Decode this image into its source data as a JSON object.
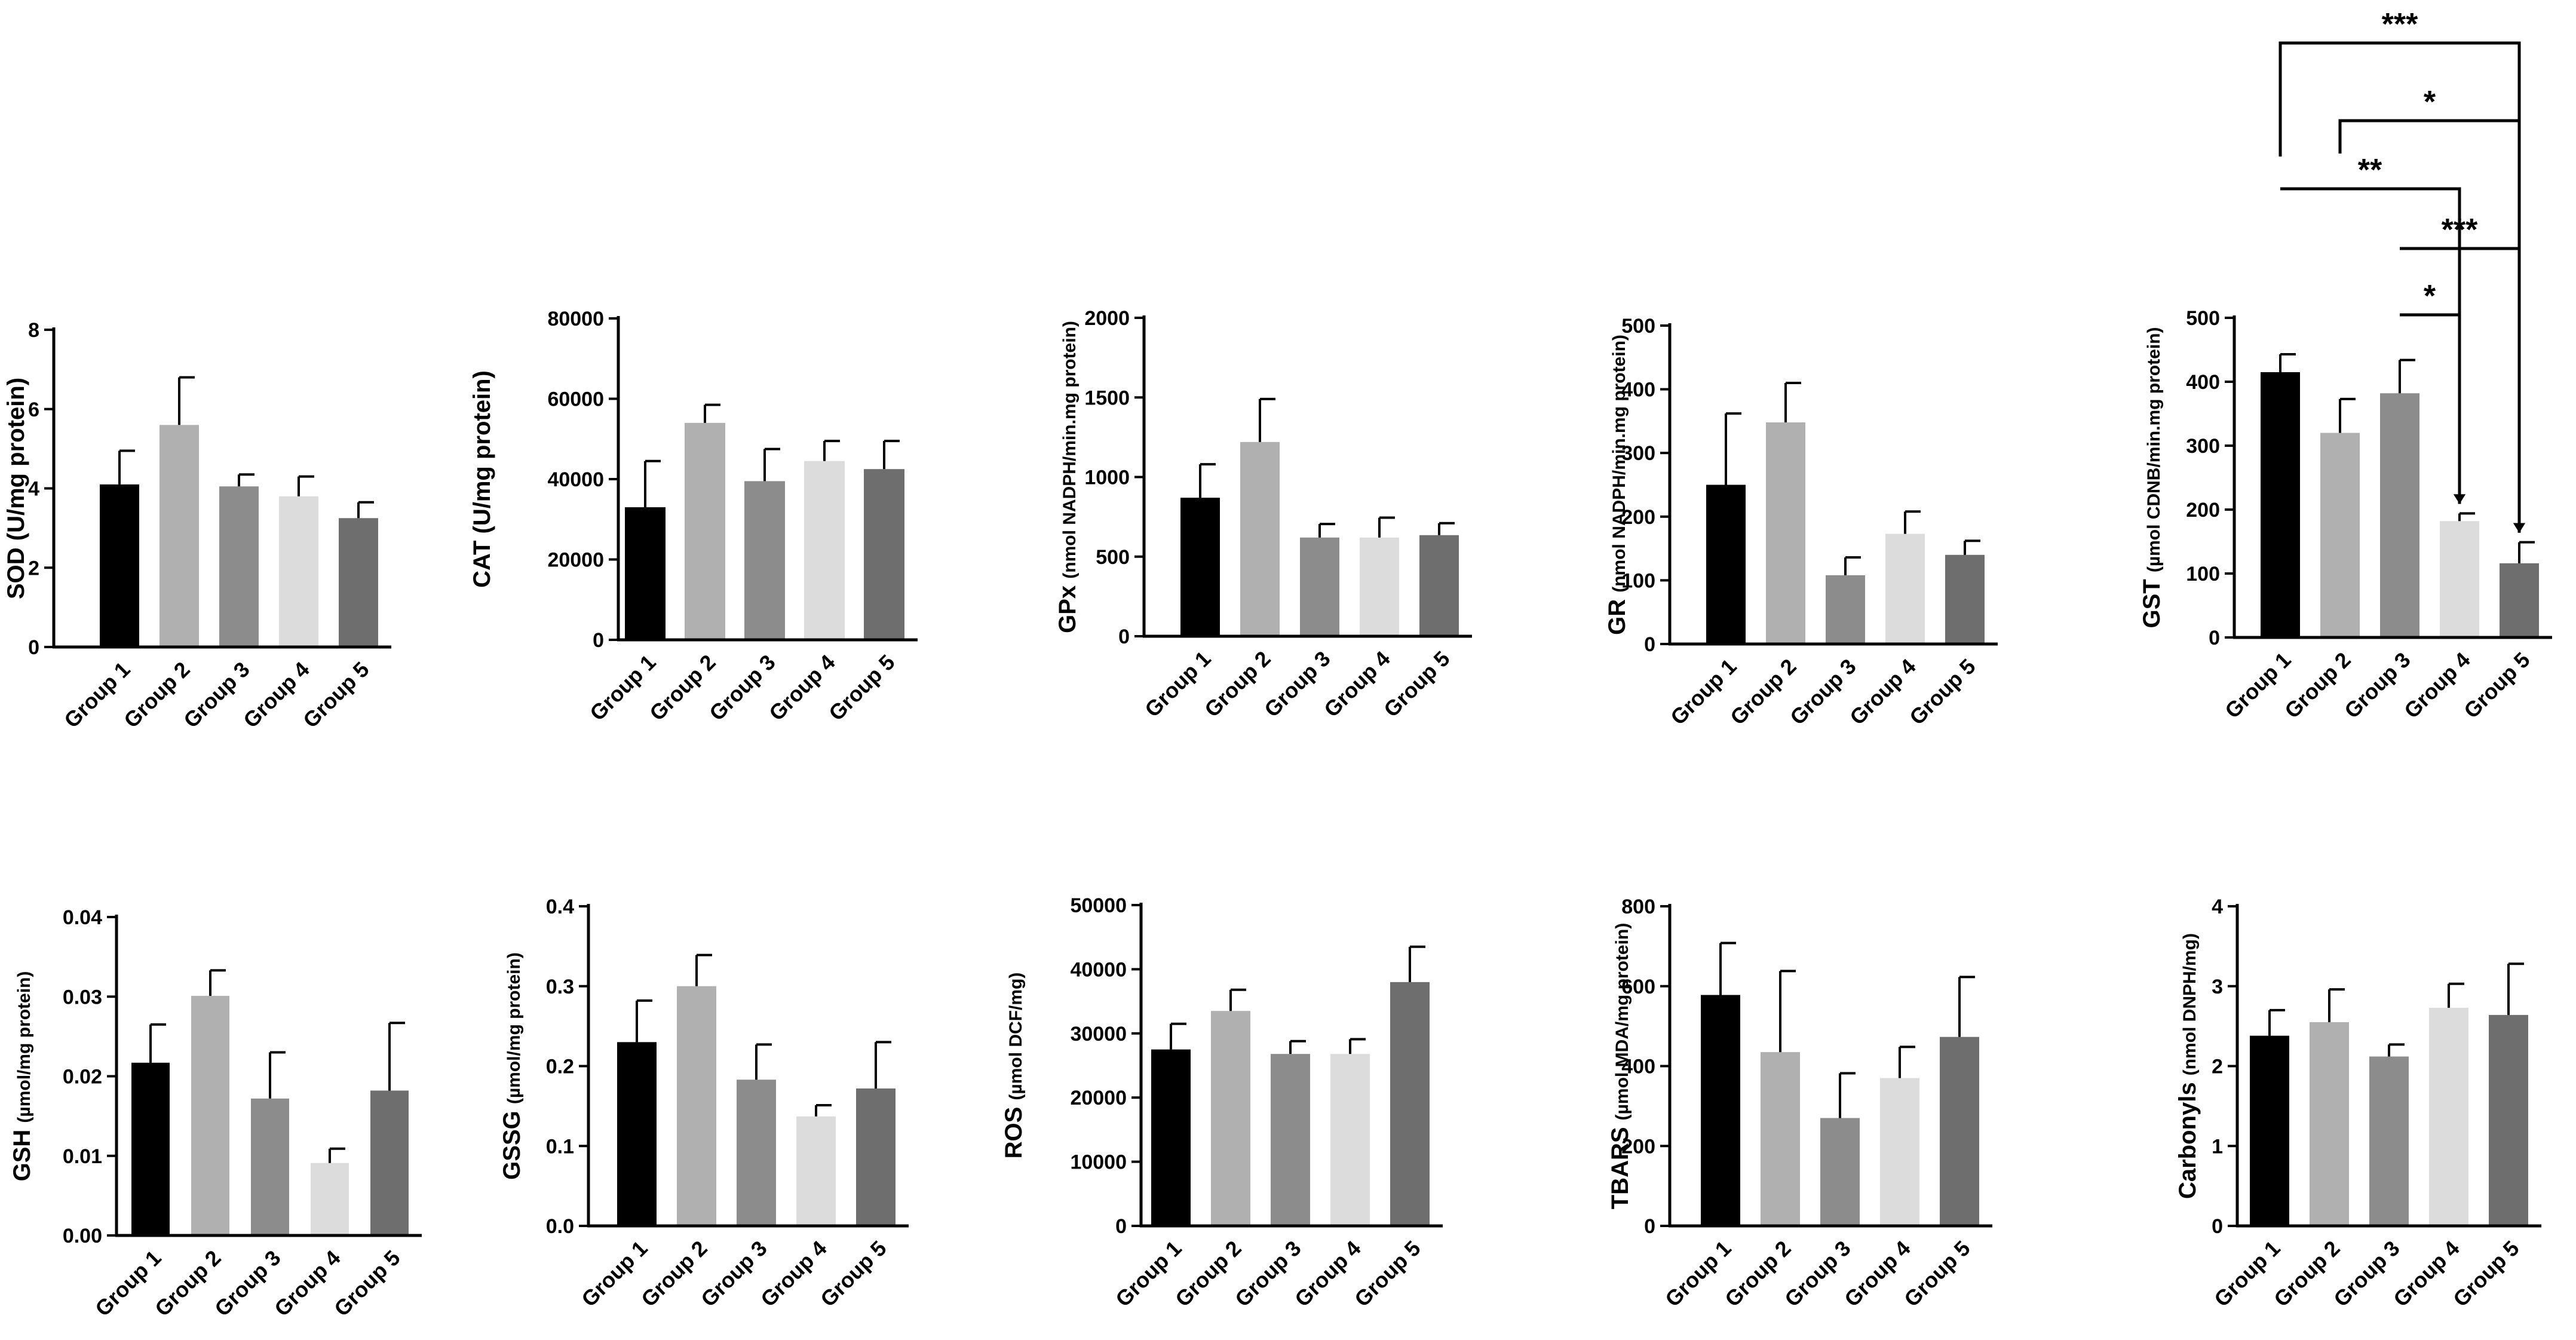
{
  "group_colors": [
    "#000000",
    "#b0b0b0",
    "#8c8c8c",
    "#dcdcdc",
    "#6e6e6e"
  ],
  "chart_data": [
    {
      "type": "bar",
      "title": "",
      "ylabel_main": "SOD",
      "ylabel_unit": "(U/mg protein)",
      "unit_bold": true,
      "categories": [
        "Group 1",
        "Group 2",
        "Group 3",
        "Group 4",
        "Group 5"
      ],
      "values": [
        4.1,
        5.6,
        4.05,
        3.8,
        3.25
      ],
      "errors": [
        0.85,
        1.2,
        0.3,
        0.5,
        0.4
      ],
      "ylim": [
        0,
        8
      ],
      "yticks": [
        0,
        2,
        4,
        6,
        8
      ],
      "tick_labels": [
        "0",
        "2",
        "4",
        "6",
        "8"
      ]
    },
    {
      "type": "bar",
      "title": "",
      "ylabel_main": "CAT",
      "ylabel_unit": "(U/mg protein)",
      "unit_bold": true,
      "categories": [
        "Group 1",
        "Group 2",
        "Group 3",
        "Group 4",
        "Group 5"
      ],
      "values": [
        33000,
        54000,
        39500,
        44500,
        42500
      ],
      "errors": [
        11500,
        4500,
        8000,
        5000,
        7000
      ],
      "ylim": [
        0,
        80000
      ],
      "yticks": [
        0,
        20000,
        40000,
        60000,
        80000
      ],
      "tick_labels": [
        "0",
        "20000",
        "40000",
        "60000",
        "80000"
      ]
    },
    {
      "type": "bar",
      "title": "",
      "ylabel_main": "GPx",
      "ylabel_unit": "(nmol NADPH/min.mg protein)",
      "unit_bold": false,
      "categories": [
        "Group 1",
        "Group 2",
        "Group 3",
        "Group 4",
        "Group 5"
      ],
      "values": [
        870,
        1220,
        620,
        620,
        635
      ],
      "errors": [
        210,
        270,
        85,
        125,
        75
      ],
      "ylim": [
        0,
        2000
      ],
      "yticks": [
        0,
        500,
        1000,
        1500,
        2000
      ],
      "tick_labels": [
        "0",
        "500",
        "1000",
        "1500",
        "2000"
      ]
    },
    {
      "type": "bar",
      "title": "",
      "ylabel_main": "GR",
      "ylabel_unit": "(nmol NADPH/min.mg protein)",
      "unit_bold": false,
      "categories": [
        "Group 1",
        "Group 2",
        "Group 3",
        "Group 4",
        "Group 5"
      ],
      "values": [
        250,
        348,
        108,
        173,
        140
      ],
      "errors": [
        112,
        62,
        28,
        35,
        22
      ],
      "ylim": [
        0,
        500
      ],
      "yticks": [
        0,
        100,
        200,
        300,
        400,
        500
      ],
      "tick_labels": [
        "0",
        "100",
        "200",
        "300",
        "400",
        "500"
      ]
    },
    {
      "type": "bar",
      "title": "",
      "ylabel_main": "GST",
      "ylabel_unit": "(µmol CDNB/min.mg protein)",
      "unit_bold": false,
      "categories": [
        "Group 1",
        "Group 2",
        "Group 3",
        "Group 4",
        "Group 5"
      ],
      "values": [
        415,
        320,
        382,
        182,
        116
      ],
      "errors": [
        28,
        53,
        52,
        12,
        33
      ],
      "ylim": [
        0,
        500
      ],
      "yticks": [
        0,
        100,
        200,
        300,
        400,
        500
      ],
      "tick_labels": [
        "0",
        "100",
        "200",
        "300",
        "400",
        "500"
      ],
      "significance": [
        {
          "from": "Group 1",
          "to": "Group 5",
          "label": "***"
        },
        {
          "from": "Group 2",
          "to": "Group 5",
          "label": "*"
        },
        {
          "from": "Group 1",
          "to": "Group 4",
          "label": "**"
        },
        {
          "from": "Group 3",
          "to": "Group 5",
          "label": "***"
        },
        {
          "from": "Group 3",
          "to": "Group 4",
          "label": "*"
        }
      ]
    },
    {
      "type": "bar",
      "title": "",
      "ylabel_main": "GSH",
      "ylabel_unit": "(µmol/mg protein)",
      "unit_bold": false,
      "categories": [
        "Group 1",
        "Group 2",
        "Group 3",
        "Group 4",
        "Group 5"
      ],
      "values": [
        0.0217,
        0.0301,
        0.0172,
        0.0091,
        0.0182
      ],
      "errors": [
        0.0048,
        0.0032,
        0.0058,
        0.0018,
        0.0085
      ],
      "ylim": [
        0,
        0.04
      ],
      "yticks": [
        0,
        0.01,
        0.02,
        0.03,
        0.04
      ],
      "tick_labels": [
        "0.00",
        "0.01",
        "0.02",
        "0.03",
        "0.04"
      ]
    },
    {
      "type": "bar",
      "title": "",
      "ylabel_main": "GSSG",
      "ylabel_unit": "(µmol/mg protein)",
      "unit_bold": false,
      "categories": [
        "Group 1",
        "Group 2",
        "Group 3",
        "Group 4",
        "Group 5"
      ],
      "values": [
        0.23,
        0.3,
        0.183,
        0.137,
        0.172
      ],
      "errors": [
        0.052,
        0.039,
        0.044,
        0.014,
        0.058
      ],
      "ylim": [
        0,
        0.4
      ],
      "yticks": [
        0,
        0.1,
        0.2,
        0.3,
        0.4
      ],
      "tick_labels": [
        "0.0",
        "0.1",
        "0.2",
        "0.3",
        "0.4"
      ]
    },
    {
      "type": "bar",
      "title": "",
      "ylabel_main": "ROS",
      "ylabel_unit": "(µmol DCF/mg)",
      "unit_bold": false,
      "categories": [
        "Group 1",
        "Group 2",
        "Group 3",
        "Group 4",
        "Group 5"
      ],
      "values": [
        27500,
        33500,
        26800,
        26800,
        38000
      ],
      "errors": [
        4000,
        3300,
        2000,
        2300,
        5500
      ],
      "ylim": [
        0,
        50000
      ],
      "yticks": [
        0,
        10000,
        20000,
        30000,
        40000,
        50000
      ],
      "tick_labels": [
        "0",
        "10000",
        "20000",
        "30000",
        "40000",
        "50000"
      ]
    },
    {
      "type": "bar",
      "title": "",
      "ylabel_main": "TBARS",
      "ylabel_unit": "(µmol MDA/mg protein)",
      "unit_bold": false,
      "categories": [
        "Group 1",
        "Group 2",
        "Group 3",
        "Group 4",
        "Group 5"
      ],
      "values": [
        578,
        435,
        270,
        370,
        473
      ],
      "errors": [
        130,
        203,
        112,
        78,
        150
      ],
      "ylim": [
        0,
        800
      ],
      "yticks": [
        0,
        200,
        400,
        600,
        800
      ],
      "tick_labels": [
        "0",
        "200",
        "400",
        "600",
        "800"
      ]
    },
    {
      "type": "bar",
      "title": "",
      "ylabel_main": "Carbonyls",
      "ylabel_unit": "(nmol DNPH/mg)",
      "unit_bold": false,
      "categories": [
        "Group 1",
        "Group 2",
        "Group 3",
        "Group 4",
        "Group 5"
      ],
      "values": [
        2.38,
        2.55,
        2.12,
        2.73,
        2.64
      ],
      "errors": [
        0.32,
        0.41,
        0.15,
        0.3,
        0.64
      ],
      "ylim": [
        0,
        4
      ],
      "yticks": [
        0,
        1,
        2,
        3,
        4
      ],
      "tick_labels": [
        "0",
        "1",
        "2",
        "3",
        "4"
      ]
    }
  ]
}
